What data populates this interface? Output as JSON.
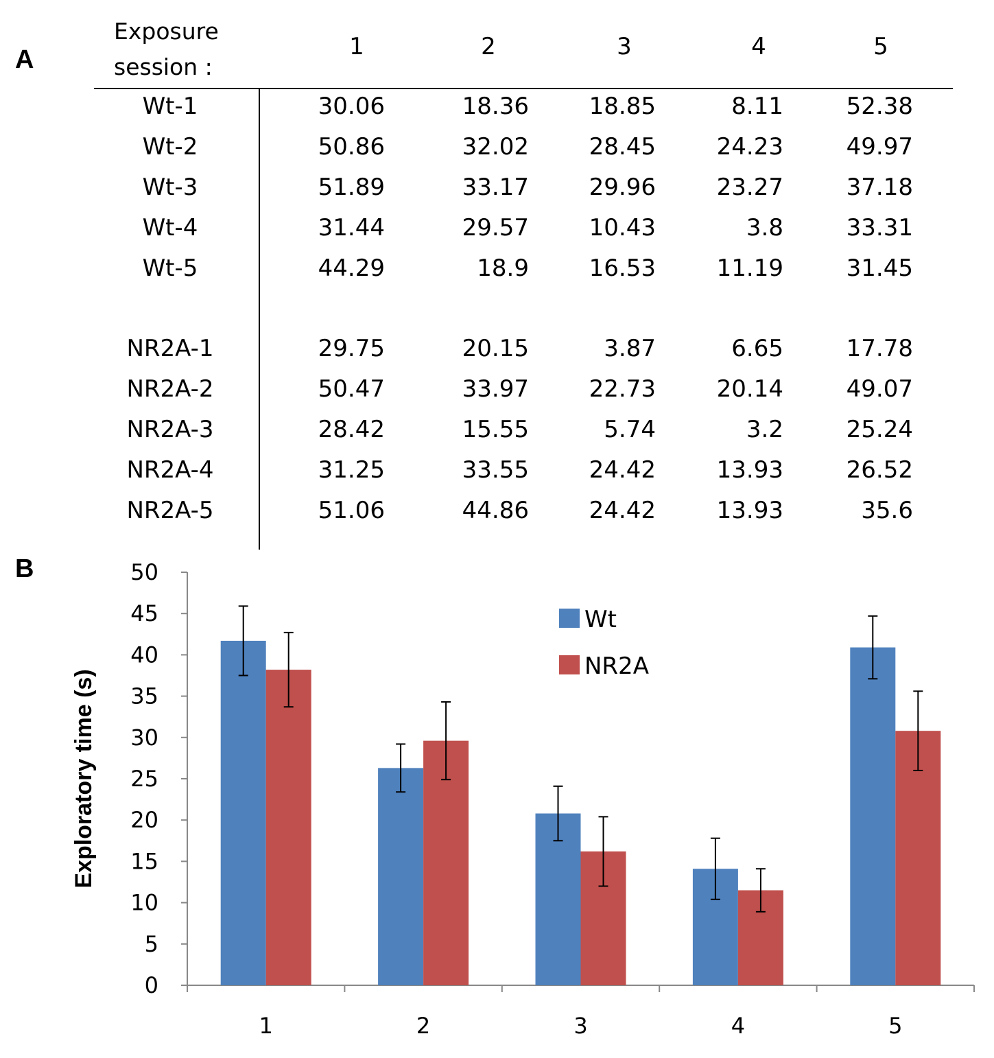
{
  "panels": {
    "a": "A",
    "b": "B"
  },
  "table": {
    "header_label": "Exposure\nsession :",
    "sessions": [
      "1",
      "2",
      "3",
      "4",
      "5"
    ],
    "groups": [
      {
        "rows": [
          {
            "label": "Wt-1",
            "values": [
              "30.06",
              "18.36",
              "18.85",
              "8.11",
              "52.38"
            ]
          },
          {
            "label": "Wt-2",
            "values": [
              "50.86",
              "32.02",
              "28.45",
              "24.23",
              "49.97"
            ]
          },
          {
            "label": "Wt-3",
            "values": [
              "51.89",
              "33.17",
              "29.96",
              "23.27",
              "37.18"
            ]
          },
          {
            "label": "Wt-4",
            "values": [
              "31.44",
              "29.57",
              "10.43",
              "3.8",
              "33.31"
            ]
          },
          {
            "label": "Wt-5",
            "values": [
              "44.29",
              "18.9",
              "16.53",
              "11.19",
              "31.45"
            ]
          }
        ]
      },
      {
        "rows": [
          {
            "label": "NR2A-1",
            "values": [
              "29.75",
              "20.15",
              "3.87",
              "6.65",
              "17.78"
            ]
          },
          {
            "label": "NR2A-2",
            "values": [
              "50.47",
              "33.97",
              "22.73",
              "20.14",
              "49.07"
            ]
          },
          {
            "label": "NR2A-3",
            "values": [
              "28.42",
              "15.55",
              "5.74",
              "3.2",
              "25.24"
            ]
          },
          {
            "label": "NR2A-4",
            "values": [
              "31.25",
              "33.55",
              "24.42",
              "13.93",
              "26.52"
            ]
          },
          {
            "label": "NR2A-5",
            "values": [
              "51.06",
              "44.86",
              "24.42",
              "13.93",
              "35.6"
            ]
          }
        ]
      }
    ]
  },
  "chart_data": {
    "type": "bar",
    "categories": [
      "1",
      "2",
      "3",
      "4",
      "5"
    ],
    "series": [
      {
        "name": "Wt",
        "color": "#4f81bd",
        "values": [
          41.7,
          26.3,
          20.8,
          14.1,
          40.9
        ],
        "errors": [
          4.2,
          2.9,
          3.3,
          3.7,
          3.8
        ]
      },
      {
        "name": "NR2A",
        "color": "#c0504d",
        "values": [
          38.2,
          29.6,
          16.2,
          11.5,
          30.8
        ],
        "errors": [
          4.5,
          4.7,
          4.2,
          2.6,
          4.8
        ]
      }
    ],
    "ylabel": "Exploratory time (s)",
    "xlabel": "",
    "ylim": [
      0,
      50
    ],
    "yticks": [
      "0",
      "5",
      "10",
      "15",
      "20",
      "25",
      "30",
      "35",
      "40",
      "45",
      "50"
    ],
    "grid": false,
    "legend": "top-center"
  }
}
